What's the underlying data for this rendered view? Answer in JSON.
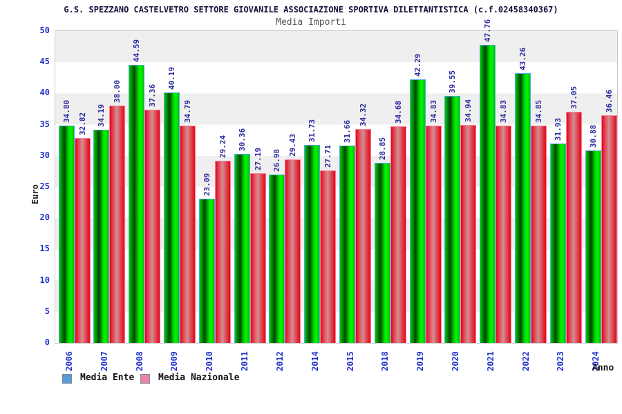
{
  "header": {
    "title": "G.S. SPEZZANO CASTELVETRO SETTORE GIOVANILE ASSOCIAZIONE SPORTIVA DILETTANTISTICA (c.f.02458340367)",
    "subtitle": "Media Importi"
  },
  "axes": {
    "y_title": "Euro",
    "x_title": "Anno"
  },
  "chart_data": {
    "type": "bar",
    "title": "Media Importi",
    "xlabel": "Anno",
    "ylabel": "Euro",
    "ylim": [
      0,
      50
    ],
    "y_ticks": [
      0,
      5,
      10,
      15,
      20,
      25,
      30,
      35,
      40,
      45,
      50
    ],
    "grid": "alternating horizontal bands every 5 units (gray/white)",
    "legend_position": "bottom-left",
    "value_labels": "shown above each bar, rotated 90deg, 2 decimals",
    "categories": [
      "2006",
      "2007",
      "2008",
      "2009",
      "2010",
      "2011",
      "2012",
      "2014",
      "2015",
      "2018",
      "2019",
      "2020",
      "2021",
      "2022",
      "2023",
      "2024"
    ],
    "series": [
      {
        "name": "Media Ente",
        "bar_color": "#00c800",
        "bar_border_color": "#4fa8e8",
        "legend_swatch_color": "#5b9bd5",
        "values": [
          34.8,
          34.19,
          44.59,
          40.19,
          23.09,
          30.36,
          26.98,
          31.73,
          31.66,
          28.85,
          42.29,
          39.55,
          47.76,
          43.26,
          31.93,
          30.88
        ]
      },
      {
        "name": "Media Nazionale",
        "bar_color": "#e00818",
        "bar_border_color": "#ff7f9f",
        "legend_swatch_color": "#ee82a8",
        "values": [
          32.82,
          38.0,
          37.36,
          34.79,
          29.24,
          27.19,
          29.43,
          27.71,
          34.32,
          34.68,
          34.83,
          34.94,
          34.83,
          34.85,
          37.05,
          36.46
        ]
      }
    ],
    "value_label_color": "#2929a0",
    "axis_tick_label_color": "#2233cc"
  }
}
